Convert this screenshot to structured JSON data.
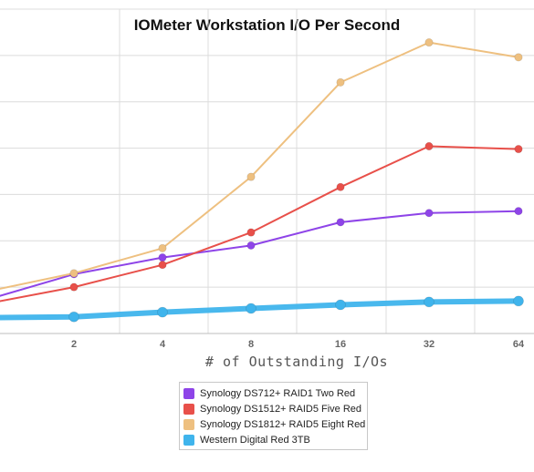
{
  "chart_data": {
    "type": "line",
    "title": "IOMeter Workstation I/O Per Second",
    "xlabel": "# of Outstanding I/Os",
    "ylabel": "",
    "x": [
      "1",
      "2",
      "4",
      "8",
      "16",
      "32",
      "64"
    ],
    "x_tick_labels": [
      "",
      "2",
      "4",
      "8",
      "16",
      "32",
      "64"
    ],
    "ylim": [
      0,
      700
    ],
    "y_gridlines": [
      0,
      100,
      200,
      300,
      400,
      500,
      600,
      700
    ],
    "grid": true,
    "legend_position": "bottom",
    "series": [
      {
        "name": "Synology DS712+ RAID1 Two Red",
        "color": "#8e44e8",
        "values": [
          72,
          128,
          164,
          190,
          240,
          260,
          264
        ]
      },
      {
        "name": "Synology DS1512+ RAID5 Five Red",
        "color": "#e8504a",
        "values": [
          64,
          100,
          148,
          218,
          316,
          404,
          398
        ]
      },
      {
        "name": "Synology DS1812+ RAID5 Eight Red",
        "color": "#eec080",
        "values": [
          90,
          130,
          184,
          338,
          542,
          628,
          596
        ]
      },
      {
        "name": "Western Digital Red 3TB",
        "color": "#3fb4ec",
        "values": [
          34,
          36,
          46,
          54,
          62,
          68,
          70
        ]
      }
    ]
  }
}
